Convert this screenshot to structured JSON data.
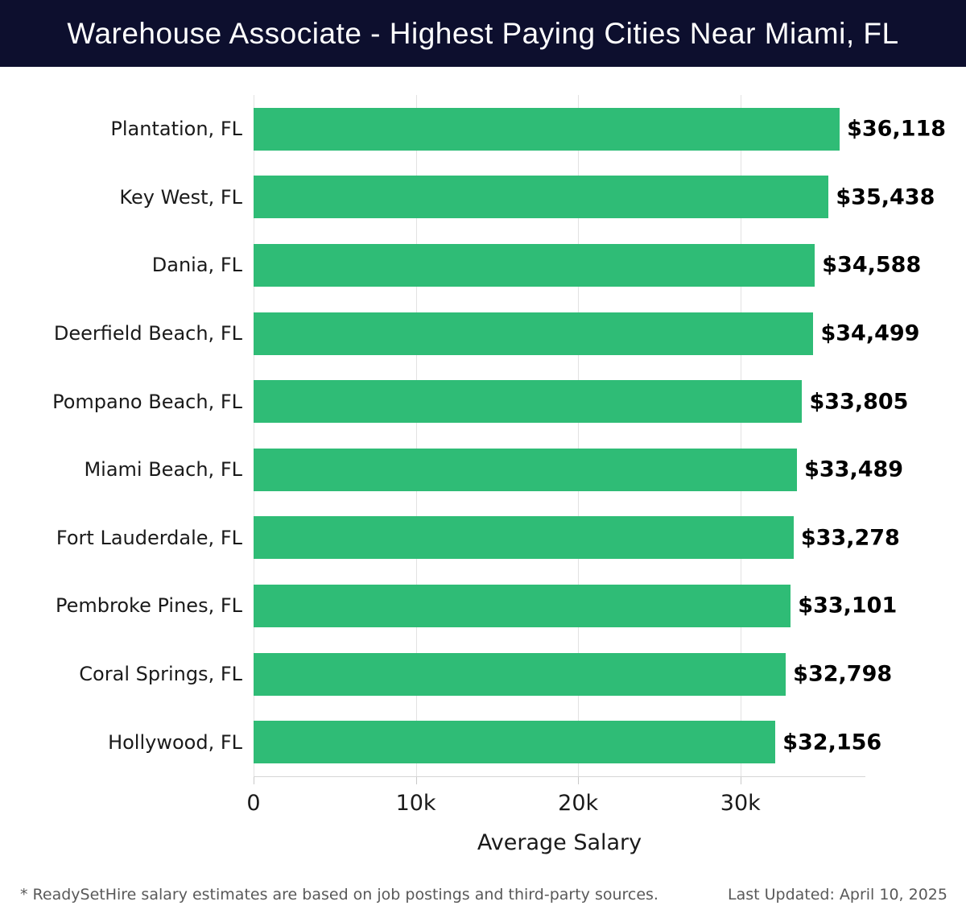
{
  "header": {
    "title": "Warehouse Associate - Highest Paying Cities Near Miami, FL"
  },
  "chart_data": {
    "type": "bar",
    "orientation": "horizontal",
    "title": "Warehouse Associate - Highest Paying Cities Near Miami, FL",
    "categories": [
      "Plantation, FL",
      "Key West, FL",
      "Dania, FL",
      "Deerfield Beach, FL",
      "Pompano Beach, FL",
      "Miami Beach, FL",
      "Fort Lauderdale, FL",
      "Pembroke Pines, FL",
      "Coral Springs, FL",
      "Hollywood, FL"
    ],
    "values": [
      36118,
      35438,
      34588,
      34499,
      33805,
      33489,
      33278,
      33101,
      32798,
      32156
    ],
    "value_labels": [
      "$36,118",
      "$35,438",
      "$34,588",
      "$34,499",
      "$33,805",
      "$33,489",
      "$33,278",
      "$33,101",
      "$32,798",
      "$32,156"
    ],
    "xlabel": "Average Salary",
    "x_tick_labels": [
      "0",
      "10k",
      "20k",
      "30k"
    ],
    "x_tick_values": [
      0,
      10000,
      20000,
      30000
    ],
    "xlim": [
      0,
      37700
    ],
    "grid": true,
    "bar_color": "#2fbc76",
    "header_bg_color": "#0d0f2e",
    "gridline_color": "#e2e2e2"
  },
  "footer": {
    "note": "* ReadySetHire salary estimates are based on job postings and third-party sources.",
    "last_updated": "Last Updated: April 10, 2025"
  }
}
